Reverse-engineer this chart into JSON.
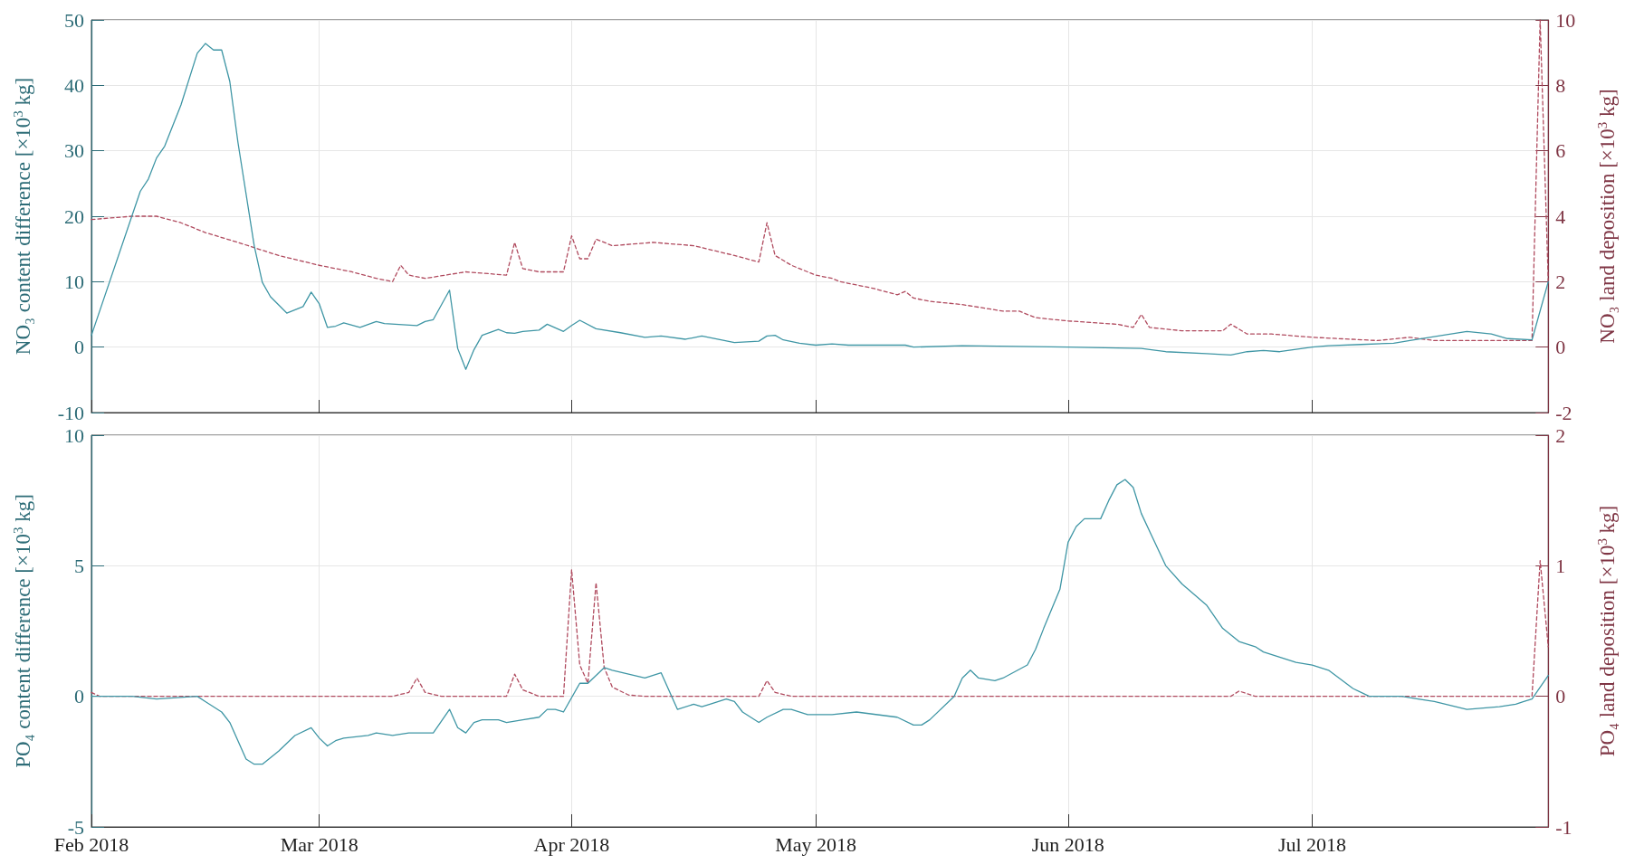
{
  "chart_data": [
    {
      "type": "line",
      "ylabel": "NO₃ content difference [×10$^{3}$ kg]",
      "y2label": "NO₃ land deposition [×10$^{3}$ kg]",
      "xlim": [
        "2018-02-01",
        "2018-07-30"
      ],
      "xticks": [
        {
          "value": "2018-02-01",
          "label": null
        },
        {
          "value": "2018-03-01",
          "label": null
        },
        {
          "value": "2018-04-01",
          "label": null
        },
        {
          "value": "2018-05-01",
          "label": null
        },
        {
          "value": "2018-06-01",
          "label": null
        },
        {
          "value": "2018-07-01",
          "label": null
        }
      ],
      "ylim": [
        -10,
        50
      ],
      "yticks": [
        -10,
        0,
        10,
        20,
        30,
        40,
        50
      ],
      "y2lim": [
        -2,
        10
      ],
      "y2ticks": [
        -2,
        0,
        2,
        4,
        6,
        8,
        10
      ],
      "grid": true,
      "tick_labels": "y",
      "series": [
        {
          "color": "#3f96a5",
          "line_style": "solid",
          "x": [
            "2018-02-01",
            "2018-02-07",
            "2018-02-08",
            "2018-02-09",
            "2018-02-10",
            "2018-02-12",
            "2018-02-14",
            "2018-02-15",
            "2018-02-16",
            "2018-02-17",
            "2018-02-18",
            "2018-02-19",
            "2018-02-21",
            "2018-02-22",
            "2018-02-23",
            "2018-02-25",
            "2018-02-27",
            "2018-02-28",
            "2018-03-01",
            "2018-03-02",
            "2018-03-03",
            "2018-03-04",
            "2018-03-06",
            "2018-03-08",
            "2018-03-09",
            "2018-03-13",
            "2018-03-14",
            "2018-03-15",
            "2018-03-17",
            "2018-03-18",
            "2018-03-19",
            "2018-03-20",
            "2018-03-21",
            "2018-03-23",
            "2018-03-24",
            "2018-03-25",
            "2018-03-26",
            "2018-03-28",
            "2018-03-29",
            "2018-03-31",
            "2018-04-01",
            "2018-04-02",
            "2018-04-04",
            "2018-04-07",
            "2018-04-10",
            "2018-04-12",
            "2018-04-15",
            "2018-04-17",
            "2018-04-21",
            "2018-04-24",
            "2018-04-25",
            "2018-04-26",
            "2018-04-27",
            "2018-04-29",
            "2018-05-01",
            "2018-05-03",
            "2018-05-05",
            "2018-05-12",
            "2018-05-13",
            "2018-05-19",
            "2018-06-01",
            "2018-06-10",
            "2018-06-13",
            "2018-06-18",
            "2018-06-21",
            "2018-06-23",
            "2018-06-25",
            "2018-06-27",
            "2018-07-01",
            "2018-07-03",
            "2018-07-07",
            "2018-07-11",
            "2018-07-13",
            "2018-07-17",
            "2018-07-20",
            "2018-07-23",
            "2018-07-25",
            "2018-07-28",
            "2018-07-30"
          ],
          "values": [
            1.8,
            23.8,
            25.7,
            28.9,
            30.7,
            37.0,
            44.9,
            46.4,
            45.4,
            45.4,
            40.6,
            31.3,
            15.5,
            9.9,
            7.7,
            5.2,
            6.2,
            8.4,
            6.6,
            3.0,
            3.2,
            3.7,
            3.0,
            3.9,
            3.6,
            3.3,
            3.9,
            4.2,
            8.7,
            -0.2,
            -3.4,
            -0.4,
            1.8,
            2.7,
            2.2,
            2.1,
            2.4,
            2.6,
            3.5,
            2.4,
            3.3,
            4.1,
            2.8,
            2.2,
            1.5,
            1.7,
            1.2,
            1.7,
            0.7,
            0.9,
            1.7,
            1.8,
            1.1,
            0.6,
            0.3,
            0.5,
            0.3,
            0.3,
            0.0,
            0.2,
            0.0,
            -0.2,
            -0.7,
            -1.0,
            -1.2,
            -0.7,
            -0.5,
            -0.7,
            0.0,
            0.2,
            0.4,
            0.6,
            1.0,
            1.8,
            2.4,
            2.0,
            1.3,
            1.1,
            10.0
          ]
        },
        {
          "color": "#b04a5e",
          "line_style": "dashed",
          "axis": "y2",
          "x": [
            "2018-02-01",
            "2018-02-06",
            "2018-02-09",
            "2018-02-12",
            "2018-02-15",
            "2018-02-19",
            "2018-02-24",
            "2018-03-01",
            "2018-03-05",
            "2018-03-08",
            "2018-03-10",
            "2018-03-11",
            "2018-03-12",
            "2018-03-14",
            "2018-03-19",
            "2018-03-24",
            "2018-03-25",
            "2018-03-26",
            "2018-03-28",
            "2018-03-31",
            "2018-04-01",
            "2018-04-02",
            "2018-04-03",
            "2018-04-04",
            "2018-04-06",
            "2018-04-11",
            "2018-04-16",
            "2018-04-21",
            "2018-04-24",
            "2018-04-25",
            "2018-04-26",
            "2018-04-28",
            "2018-05-01",
            "2018-05-03",
            "2018-05-04",
            "2018-05-08",
            "2018-05-11",
            "2018-05-12",
            "2018-05-13",
            "2018-05-15",
            "2018-05-19",
            "2018-05-24",
            "2018-05-26",
            "2018-05-28",
            "2018-06-01",
            "2018-06-07",
            "2018-06-09",
            "2018-06-10",
            "2018-06-11",
            "2018-06-15",
            "2018-06-20",
            "2018-06-21",
            "2018-06-23",
            "2018-06-26",
            "2018-07-01",
            "2018-07-09",
            "2018-07-13",
            "2018-07-16",
            "2018-07-22",
            "2018-07-28",
            "2018-07-29",
            "2018-07-30"
          ],
          "values": [
            3.9,
            4.0,
            4.0,
            3.8,
            3.5,
            3.2,
            2.8,
            2.5,
            2.3,
            2.1,
            2.0,
            2.5,
            2.2,
            2.1,
            2.3,
            2.2,
            3.2,
            2.4,
            2.3,
            2.3,
            3.4,
            2.7,
            2.7,
            3.3,
            3.1,
            3.2,
            3.1,
            2.8,
            2.6,
            3.8,
            2.8,
            2.5,
            2.2,
            2.1,
            2.0,
            1.8,
            1.6,
            1.7,
            1.5,
            1.4,
            1.3,
            1.1,
            1.1,
            0.9,
            0.8,
            0.7,
            0.6,
            1.0,
            0.6,
            0.5,
            0.5,
            0.7,
            0.4,
            0.4,
            0.3,
            0.2,
            0.3,
            0.2,
            0.2,
            0.2,
            10.0,
            2.0
          ]
        }
      ]
    },
    {
      "type": "line",
      "ylabel": "PO₄ content difference [×10$^{3}$ kg]",
      "y2label": "PO₄ land deposition [×10$^{3}$ kg]",
      "xlim": [
        "2018-02-01",
        "2018-07-30"
      ],
      "xticks": [
        {
          "value": "2018-02-01",
          "label": "Feb 2018"
        },
        {
          "value": "2018-03-01",
          "label": "Mar 2018"
        },
        {
          "value": "2018-04-01",
          "label": "Apr 2018"
        },
        {
          "value": "2018-05-01",
          "label": "May 2018"
        },
        {
          "value": "2018-06-01",
          "label": "Jun 2018"
        },
        {
          "value": "2018-07-01",
          "label": "Jul 2018"
        }
      ],
      "ylim": [
        -5,
        10
      ],
      "yticks": [
        -5,
        0,
        5,
        10
      ],
      "y2lim": [
        -1,
        2
      ],
      "y2ticks": [
        -1,
        0,
        1,
        2
      ],
      "grid": true,
      "series": [
        {
          "color": "#3f96a5",
          "line_style": "solid",
          "x": [
            "2018-02-01",
            "2018-02-06",
            "2018-02-09",
            "2018-02-14",
            "2018-02-15",
            "2018-02-17",
            "2018-02-18",
            "2018-02-19",
            "2018-02-20",
            "2018-02-21",
            "2018-02-22",
            "2018-02-24",
            "2018-02-26",
            "2018-02-28",
            "2018-03-01",
            "2018-03-02",
            "2018-03-03",
            "2018-03-04",
            "2018-03-07",
            "2018-03-08",
            "2018-03-10",
            "2018-03-12",
            "2018-03-13",
            "2018-03-15",
            "2018-03-17",
            "2018-03-18",
            "2018-03-19",
            "2018-03-20",
            "2018-03-21",
            "2018-03-23",
            "2018-03-24",
            "2018-03-26",
            "2018-03-28",
            "2018-03-29",
            "2018-03-30",
            "2018-03-31",
            "2018-04-02",
            "2018-04-03",
            "2018-04-05",
            "2018-04-06",
            "2018-04-10",
            "2018-04-12",
            "2018-04-14",
            "2018-04-16",
            "2018-04-17",
            "2018-04-18",
            "2018-04-20",
            "2018-04-21",
            "2018-04-22",
            "2018-04-23",
            "2018-04-24",
            "2018-04-25",
            "2018-04-27",
            "2018-04-28",
            "2018-04-30",
            "2018-05-01",
            "2018-05-03",
            "2018-05-06",
            "2018-05-11",
            "2018-05-13",
            "2018-05-14",
            "2018-05-15",
            "2018-05-18",
            "2018-05-19",
            "2018-05-20",
            "2018-05-21",
            "2018-05-23",
            "2018-05-24",
            "2018-05-27",
            "2018-05-28",
            "2018-05-29",
            "2018-05-31",
            "2018-06-01",
            "2018-06-02",
            "2018-06-03",
            "2018-06-05",
            "2018-06-06",
            "2018-06-07",
            "2018-06-08",
            "2018-06-09",
            "2018-06-10",
            "2018-06-13",
            "2018-06-15",
            "2018-06-18",
            "2018-06-20",
            "2018-06-22",
            "2018-06-24",
            "2018-06-25",
            "2018-06-27",
            "2018-06-29",
            "2018-07-01",
            "2018-07-03",
            "2018-07-06",
            "2018-07-08",
            "2018-07-12",
            "2018-07-14",
            "2018-07-16",
            "2018-07-20",
            "2018-07-24",
            "2018-07-26",
            "2018-07-27",
            "2018-07-28",
            "2018-07-30"
          ],
          "values": [
            0.0,
            0.0,
            -0.1,
            0.0,
            -0.2,
            -0.6,
            -1.0,
            -1.7,
            -2.4,
            -2.6,
            -2.6,
            -2.1,
            -1.5,
            -1.2,
            -1.6,
            -1.9,
            -1.7,
            -1.6,
            -1.5,
            -1.4,
            -1.5,
            -1.4,
            -1.4,
            -1.4,
            -0.5,
            -1.2,
            -1.4,
            -1.0,
            -0.9,
            -0.9,
            -1.0,
            -0.9,
            -0.8,
            -0.5,
            -0.5,
            -0.6,
            0.5,
            0.5,
            1.1,
            1.0,
            0.7,
            0.9,
            -0.5,
            -0.3,
            -0.4,
            -0.3,
            -0.1,
            -0.2,
            -0.6,
            -0.8,
            -1.0,
            -0.8,
            -0.5,
            -0.5,
            -0.7,
            -0.7,
            -0.7,
            -0.6,
            -0.8,
            -1.1,
            -1.1,
            -0.9,
            0.0,
            0.7,
            1.0,
            0.7,
            0.6,
            0.7,
            1.2,
            1.8,
            2.6,
            4.1,
            5.9,
            6.5,
            6.8,
            6.8,
            7.5,
            8.1,
            8.3,
            8.0,
            7.0,
            5.0,
            4.3,
            3.5,
            2.6,
            2.1,
            1.9,
            1.7,
            1.5,
            1.3,
            1.2,
            1.0,
            0.3,
            0.0,
            0.0,
            -0.1,
            -0.2,
            -0.5,
            -0.4,
            -0.3,
            -0.2,
            -0.1,
            0.8
          ]
        },
        {
          "color": "#b04a5e",
          "line_style": "dashed",
          "axis": "y2",
          "x": [
            "2018-02-01",
            "2018-02-02",
            "2018-03-10",
            "2018-03-12",
            "2018-03-13",
            "2018-03-14",
            "2018-03-16",
            "2018-03-24",
            "2018-03-25",
            "2018-03-26",
            "2018-03-28",
            "2018-03-31",
            "2018-04-01",
            "2018-04-02",
            "2018-04-03",
            "2018-04-04",
            "2018-04-05",
            "2018-04-06",
            "2018-04-08",
            "2018-04-10",
            "2018-04-24",
            "2018-04-25",
            "2018-04-26",
            "2018-04-28",
            "2018-06-21",
            "2018-06-22",
            "2018-06-23",
            "2018-06-24",
            "2018-07-28",
            "2018-07-29",
            "2018-07-30"
          ],
          "values": [
            0.03,
            0,
            0,
            0.03,
            0.14,
            0.03,
            0,
            0,
            0.17,
            0.05,
            0,
            0,
            0.97,
            0.24,
            0.1,
            0.87,
            0.22,
            0.07,
            0.01,
            0,
            0,
            0.12,
            0.03,
            0,
            0,
            0.04,
            0.02,
            0,
            0,
            1.04,
            0.38
          ]
        }
      ]
    }
  ]
}
